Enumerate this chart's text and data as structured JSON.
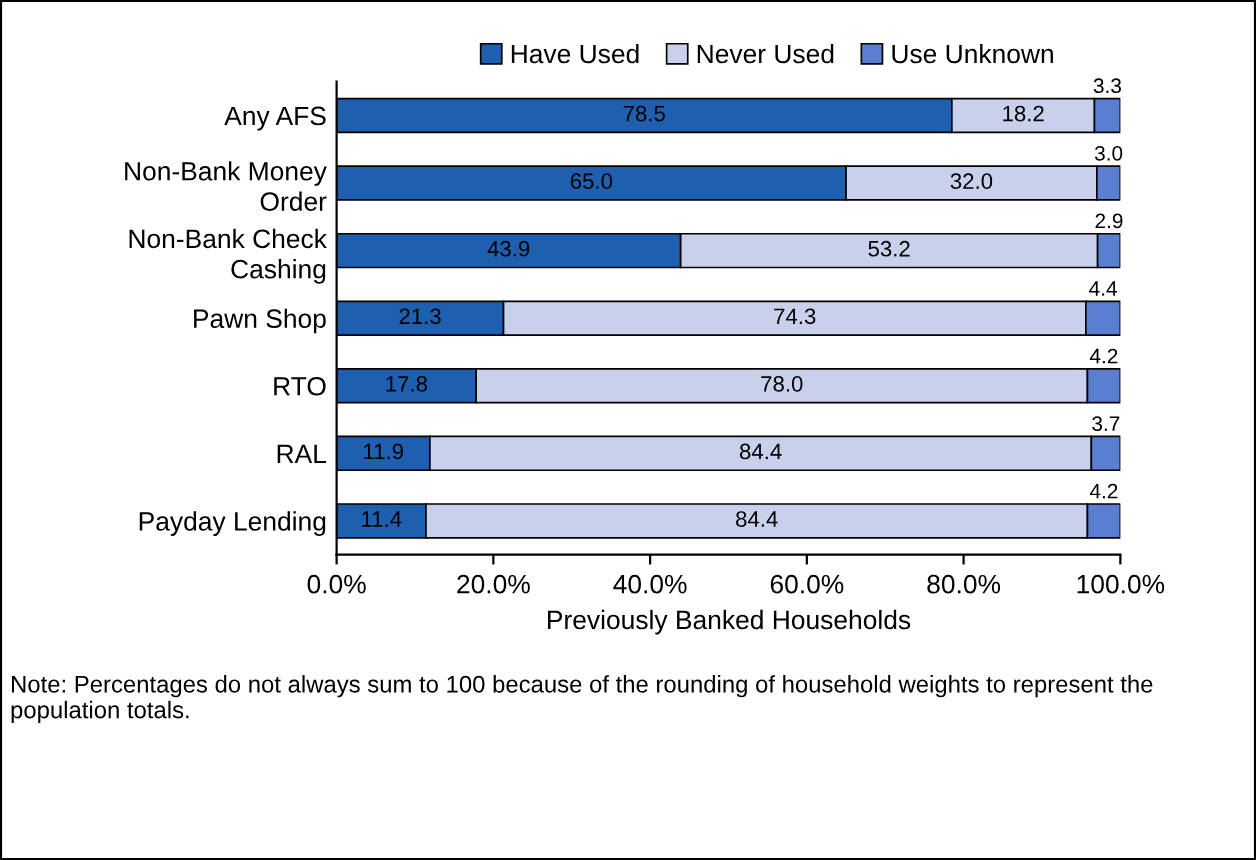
{
  "chart_data": {
    "type": "bar",
    "orientation": "horizontal",
    "stacked": true,
    "categories": [
      "Any AFS",
      "Non-Bank Money\nOrder",
      "Non-Bank Check\nCashing",
      "Pawn Shop",
      "RTO",
      "RAL",
      "Payday Lending"
    ],
    "series": [
      {
        "name": "Have Used",
        "color": "#1f5fb0",
        "values": [
          78.5,
          65.0,
          43.9,
          21.3,
          17.8,
          11.9,
          11.4
        ],
        "value_labels": [
          "78.5",
          "65.0",
          "43.9",
          "21.3",
          "17.8",
          "11.9",
          "11.4"
        ]
      },
      {
        "name": "Never Used",
        "color": "#c8d0ec",
        "values": [
          18.2,
          32.0,
          53.2,
          74.3,
          78.0,
          84.4,
          84.4
        ],
        "value_labels": [
          "18.2",
          "32.0",
          "53.2",
          "74.3",
          "78.0",
          "84.4",
          "84.4"
        ]
      },
      {
        "name": "Use Unknown",
        "color": "#5a7fd0",
        "values": [
          3.3,
          3.0,
          2.9,
          4.4,
          4.2,
          3.7,
          4.2
        ],
        "value_labels": [
          "3.3",
          "3.0",
          "2.9",
          "4.4",
          "4.2",
          "3.7",
          "4.2"
        ]
      }
    ],
    "xlim": [
      0,
      100
    ],
    "xticks": [
      {
        "value": 0,
        "label": "0.0%"
      },
      {
        "value": 20,
        "label": "20.0%"
      },
      {
        "value": 40,
        "label": "40.0%"
      },
      {
        "value": 60,
        "label": "60.0%"
      },
      {
        "value": 80,
        "label": "80.0%"
      },
      {
        "value": 100,
        "label": "100.0%"
      }
    ],
    "xlabel": "Previously Banked Households",
    "legend": "top",
    "grid": false,
    "annotations": [
      "Note: Percentages do not always sum to 100 because of the rounding of household weights to represent the population totals."
    ]
  }
}
